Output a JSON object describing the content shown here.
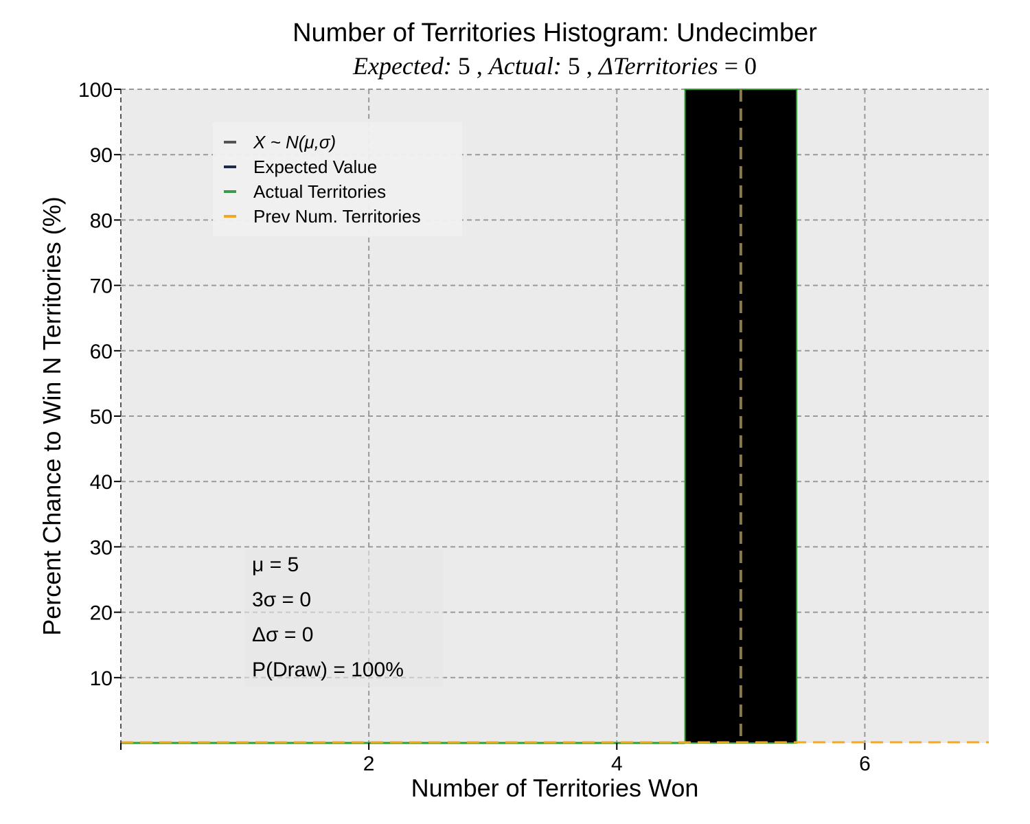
{
  "chart_data": {
    "type": "bar",
    "title": "Number of Territories Histogram: Undecimber",
    "subtitle": {
      "expected_label": "Expected:",
      "expected": "5",
      "actual_label": "Actual:",
      "actual": "5",
      "delta_label": "ΔTerritories",
      "delta": "= 0"
    },
    "xlabel": "Number of Territories Won",
    "ylabel": "Percent Chance to Win N Territories (%)",
    "xlim": [
      0,
      7
    ],
    "ylim": [
      0,
      100
    ],
    "x_ticks": [
      2,
      4,
      6
    ],
    "y_ticks": [
      10,
      20,
      30,
      40,
      50,
      60,
      70,
      80,
      90,
      100
    ],
    "grid": true,
    "bars": [
      {
        "x": 5,
        "width": 0.9,
        "value": 100,
        "color": "#000000",
        "edge_color": "#2ca02c"
      }
    ],
    "lines": {
      "expected_value_x": 5,
      "actual_territories_x": 5,
      "prev_num_territories_y": 0
    },
    "legend": {
      "placement": "upper-left",
      "entries": [
        {
          "label": "X ~ N(μ,σ)",
          "color": "#555555",
          "italic": true
        },
        {
          "label": "Expected Value",
          "color": "#1a2a4a"
        },
        {
          "label": "Actual Territories",
          "color": "#3a9a4a"
        },
        {
          "label": "Prev Num. Territories",
          "color": "#f5a623"
        }
      ]
    },
    "stats": {
      "mu": "μ = 5",
      "three_sigma": "3σ = 0",
      "delta_sigma": "Δσ = 0",
      "p_draw": "P(Draw) = 100%"
    },
    "colors": {
      "plot_bg": "#ebebeb",
      "grid": "#999999",
      "bar": "#000000",
      "bar_edge": "#2ca02c",
      "expected_line": "#8a7a4a",
      "prev_line": "#f5a623",
      "actual_line": "#2ca02c"
    }
  }
}
